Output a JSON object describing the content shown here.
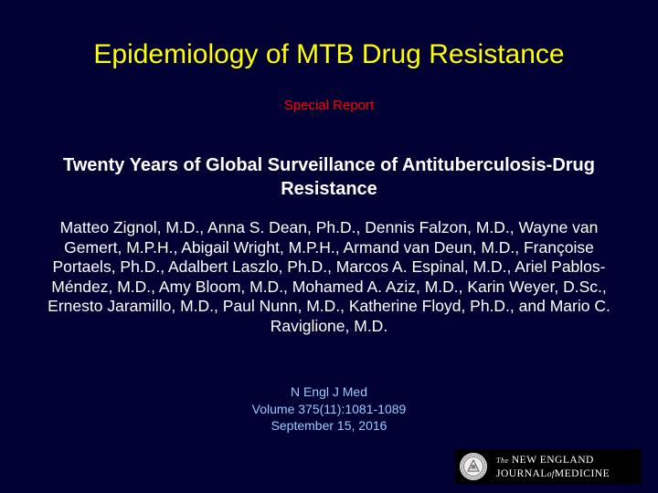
{
  "slide": {
    "title": "Epidemiology of MTB Drug Resistance"
  },
  "report": {
    "label": "Special Report"
  },
  "article": {
    "title": "Twenty Years of Global Surveillance of Antituberculosis-Drug Resistance",
    "authors": "Matteo Zignol, M.D., Anna S. Dean, Ph.D., Dennis Falzon, M.D., Wayne van Gemert, M.P.H., Abigail Wright, M.P.H., Armand van Deun, M.D., Françoise Portaels, Ph.D., Adalbert Laszlo, Ph.D., Marcos A. Espinal, M.D., Ariel Pablos-Méndez, M.D., Amy Bloom, M.D., Mohamed A. Aziz, M.D., Karin Weyer, D.Sc., Ernesto Jaramillo, M.D., Paul Nunn, M.D., Katherine Floyd, Ph.D., and Mario C. Raviglione, M.D."
  },
  "citation": {
    "journal": "N Engl J Med",
    "volume": "Volume 375(11):1081-1089",
    "date": "September 15, 2016"
  },
  "logo": {
    "line1_prefix": "The",
    "line1_main": "NEW ENGLAND",
    "line2_part1": "JOURNAL",
    "line2_of": "of",
    "line2_part2": "MEDICINE",
    "seal_icon": "nejm-seal-icon"
  },
  "colors": {
    "background": "#000033",
    "title": "#ffff00",
    "report_label": "#ff0000",
    "body_text": "#ffffff",
    "citation": "#99ccff"
  }
}
